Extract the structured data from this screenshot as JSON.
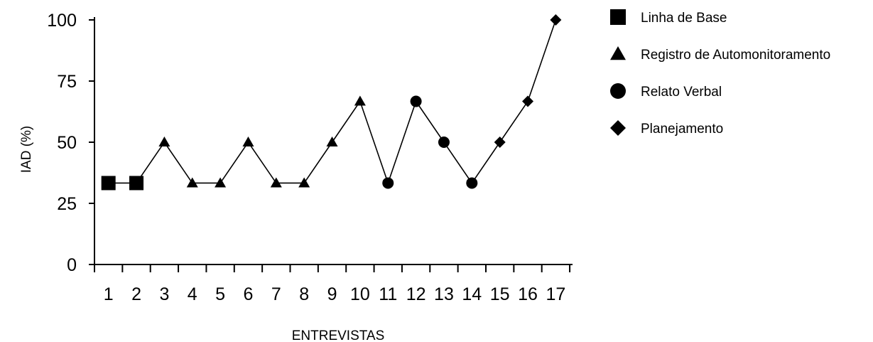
{
  "chart_data": {
    "type": "line",
    "title": "",
    "xlabel": "ENTREVISTAS",
    "ylabel": "IAD (%)",
    "ylim": [
      0,
      100
    ],
    "yticks": [
      0,
      25,
      50,
      75,
      100
    ],
    "categories": [
      "1",
      "2",
      "3",
      "4",
      "5",
      "6",
      "7",
      "8",
      "9",
      "10",
      "11",
      "12",
      "13",
      "14",
      "15",
      "16",
      "17"
    ],
    "values": [
      33.3,
      33.3,
      50,
      33.3,
      33.3,
      50,
      33.3,
      33.3,
      50,
      66.7,
      33.3,
      66.7,
      50,
      33.3,
      50,
      66.7,
      100
    ],
    "phases": [
      1,
      1,
      2,
      2,
      2,
      2,
      2,
      2,
      2,
      2,
      3,
      3,
      3,
      3,
      4,
      4,
      4
    ],
    "legend_position": "top-right",
    "legend": [
      {
        "label": "Linha de Base",
        "marker": "square"
      },
      {
        "label": "Registro de Automonitoramento",
        "marker": "triangle"
      },
      {
        "label": "Relato Verbal",
        "marker": "circle"
      },
      {
        "label": "Planejamento",
        "marker": "diamond"
      }
    ],
    "color": "#000000",
    "grid": false
  }
}
